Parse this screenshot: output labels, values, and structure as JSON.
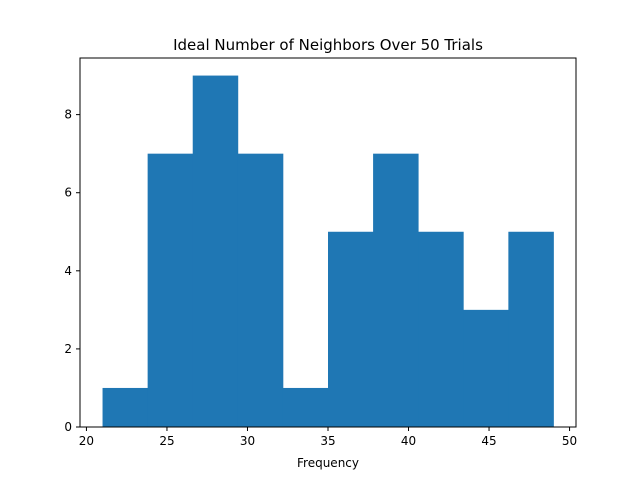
{
  "chart_data": {
    "type": "bar",
    "title": "Ideal Number of Neighbors Over 50 Trials",
    "xlabel": "Frequency",
    "ylabel": "",
    "bin_edges": [
      21,
      23.8,
      26.6,
      29.4,
      32.2,
      35,
      37.8,
      40.6,
      43.4,
      46.2,
      49
    ],
    "values": [
      1,
      7,
      9,
      7,
      1,
      5,
      7,
      5,
      3,
      5
    ],
    "xlim": [
      19.6,
      50.4
    ],
    "ylim": [
      0,
      9.45
    ],
    "xticks": [
      20,
      25,
      30,
      35,
      40,
      45,
      50
    ],
    "yticks": [
      0,
      2,
      4,
      6,
      8
    ],
    "xtick_labels": [
      "20",
      "25",
      "30",
      "35",
      "40",
      "45",
      "50"
    ],
    "ytick_labels": [
      "0",
      "2",
      "4",
      "6",
      "8"
    ],
    "bar_color": "#1f77b4",
    "grid": false,
    "legend": "none"
  }
}
